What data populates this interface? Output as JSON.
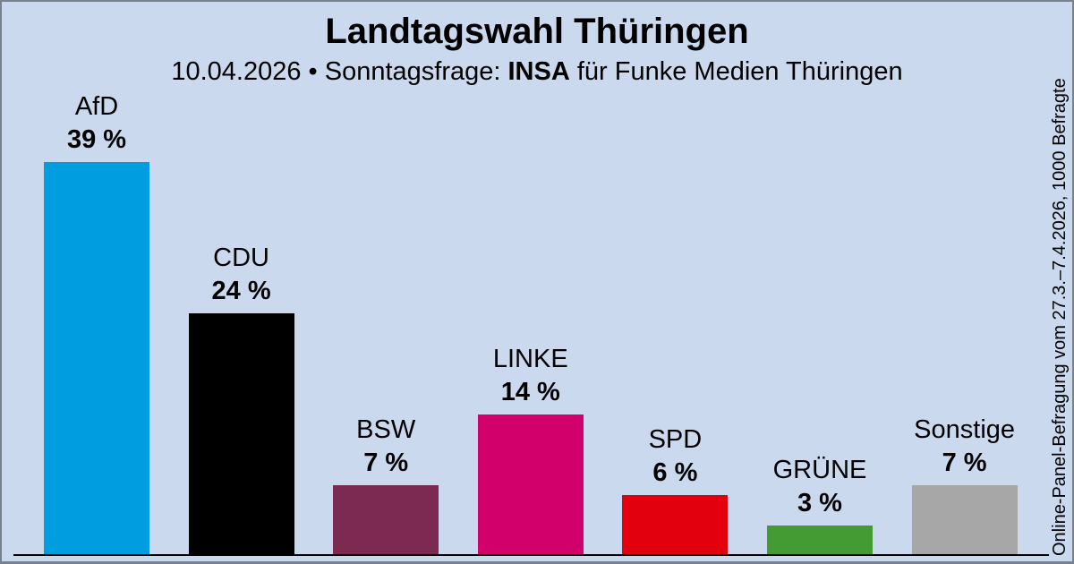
{
  "header": {
    "title": "Landtagswahl Thüringen",
    "subtitle_prefix": "10.04.2026 • Sonntagsfrage: ",
    "subtitle_institute": "INSA",
    "subtitle_suffix": " für Funke Medien Thüringen"
  },
  "side_note": "Online-Panel-Befragung vom 27.3.–7.4.2026, 1000 Befragte",
  "colors": {
    "background": "#CBD9EF",
    "frame_border": "#79828C",
    "baseline": "#000000"
  },
  "chart_data": {
    "type": "bar",
    "title": "Landtagswahl Thüringen",
    "subtitle": "10.04.2026 • Sonntagsfrage: INSA für Funke Medien Thüringen",
    "categories": [
      "AfD",
      "CDU",
      "BSW",
      "LINKE",
      "SPD",
      "GRÜNE",
      "Sonstige"
    ],
    "values": [
      39,
      24,
      7,
      14,
      6,
      3,
      7
    ],
    "value_labels": [
      "39 %",
      "24 %",
      "7 %",
      "14 %",
      "6 %",
      "3 %",
      "7 %"
    ],
    "bar_colors": [
      "#009DE0",
      "#000000",
      "#7C2A52",
      "#D2006A",
      "#E2000F",
      "#459B33",
      "#A7A7A7"
    ],
    "xlabel": "",
    "ylabel": "",
    "ylim": [
      0,
      42
    ],
    "grid": false,
    "legend": false,
    "annotation": "Online-Panel-Befragung vom 27.3.–7.4.2026, 1000 Befragte"
  }
}
